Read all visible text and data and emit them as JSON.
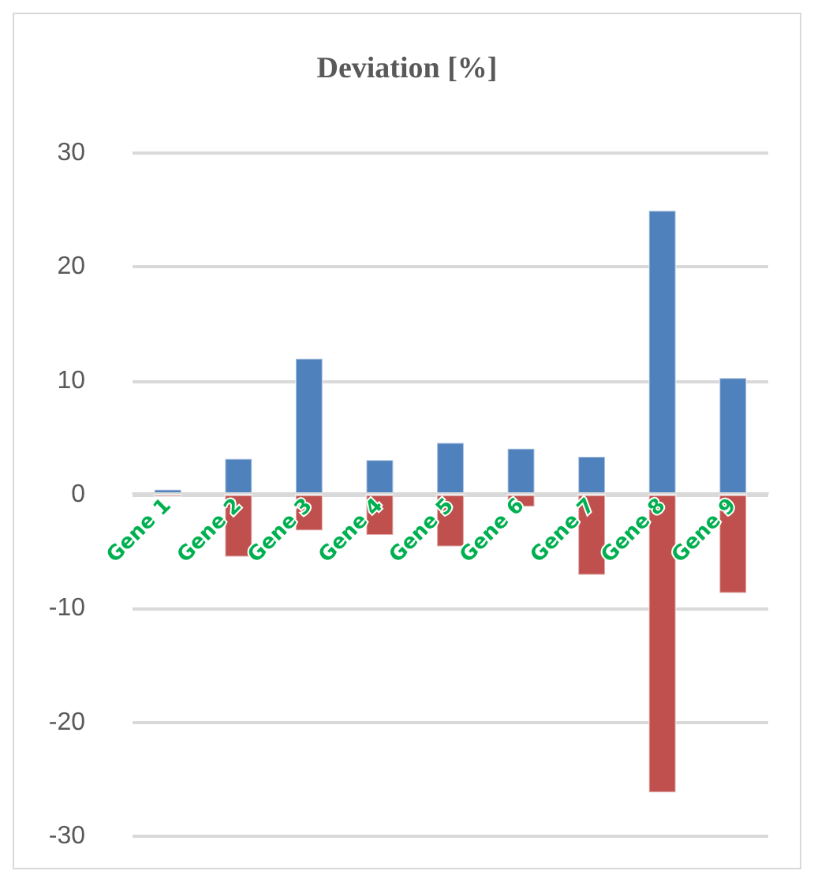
{
  "chart_data": {
    "type": "bar",
    "title": "Deviation [%]",
    "stacked": true,
    "categories": [
      "Gene 1",
      "Gene 2",
      "Gene 3",
      "Gene 4",
      "Gene 5",
      "Gene 6",
      "Gene 7",
      "Gene 8",
      "Gene 9"
    ],
    "series": [
      {
        "color": "#4f81bd",
        "values": [
          0.5,
          3.2,
          12,
          3.1,
          4.6,
          4.1,
          3.4,
          25,
          10.3
        ]
      },
      {
        "color": "#c0504d",
        "values": [
          -0.2,
          -5.5,
          -3.2,
          -3.6,
          -4.6,
          -1.1,
          -7.1,
          -26.2,
          -8.7
        ]
      }
    ],
    "ylim": [
      -30,
      30
    ],
    "yticks": [
      -30,
      -20,
      -10,
      0,
      10,
      20,
      30
    ],
    "grid": "y"
  }
}
